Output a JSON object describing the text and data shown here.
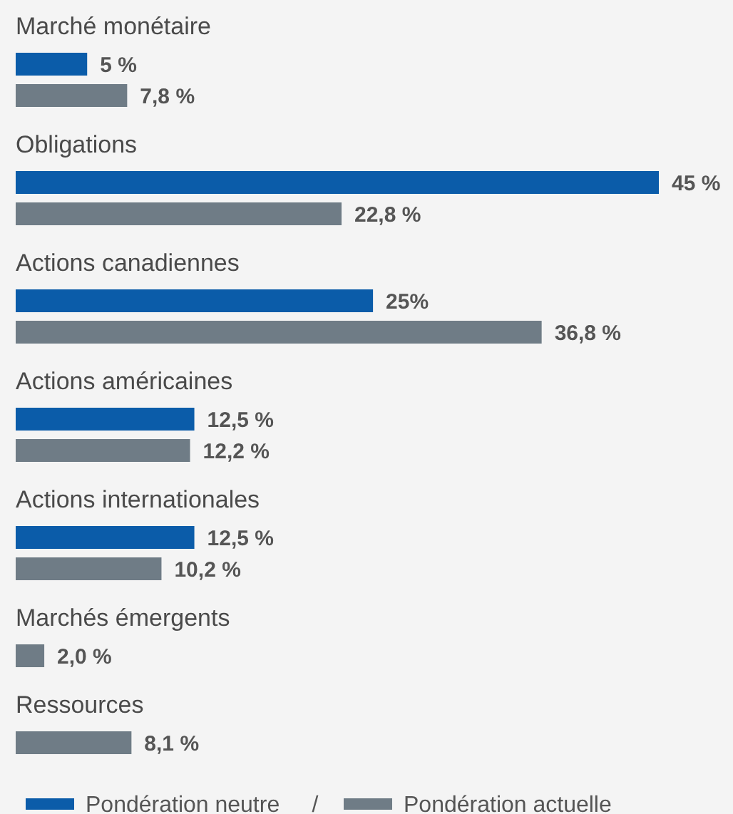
{
  "chart_data": {
    "type": "bar",
    "orientation": "horizontal",
    "data_labels": true,
    "legend": "bottom left",
    "categories": [
      "Marché monétaire",
      "Obligations",
      "Actions canadiennes",
      "Actions américaines",
      "Actions internationales",
      "Marchés émergents",
      "Ressources"
    ],
    "series": [
      {
        "name": "Pondération neutre",
        "color": "#0b5ca9",
        "values": [
          5,
          45,
          25,
          12.5,
          12.5,
          null,
          null
        ],
        "value_labels": [
          "5 %",
          "45 %",
          "25%",
          "12,5 %",
          "12,5 %",
          null,
          null
        ]
      },
      {
        "name": "Pondération actuelle",
        "color": "#6f7c86",
        "values": [
          7.8,
          22.8,
          36.8,
          12.2,
          10.2,
          2.0,
          8.1
        ],
        "value_labels": [
          "7,8 %",
          "22,8 %",
          "36,8 %",
          "12,2 %",
          "10,2 %",
          "2,0 %",
          "8,1 %"
        ]
      }
    ],
    "annotations": [
      "/"
    ]
  }
}
